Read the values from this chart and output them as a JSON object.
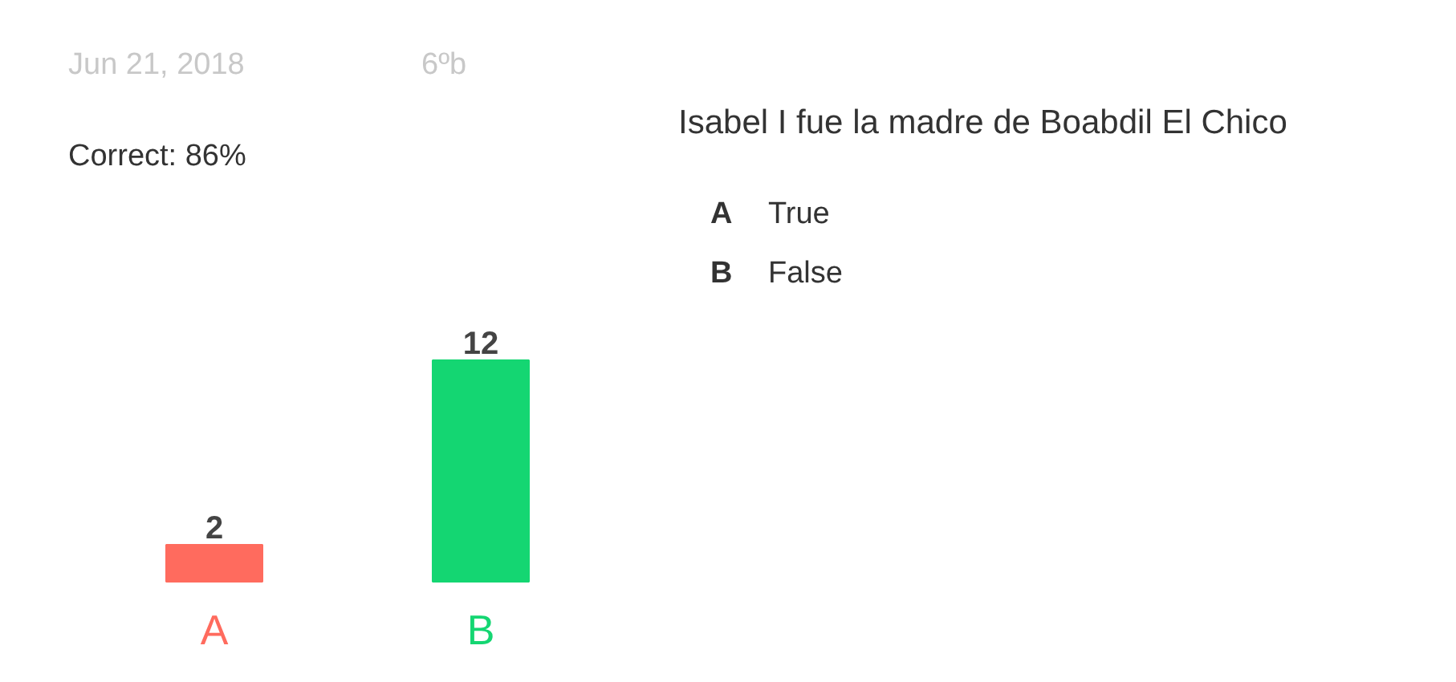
{
  "chart_data": {
    "type": "bar",
    "title": "Isabel I fue la madre de Boabdil El Chico",
    "categories": [
      "A",
      "B"
    ],
    "values": [
      2,
      12
    ],
    "colors": [
      "#ff6b5e",
      "#14d672"
    ],
    "data_labels": true,
    "annotations": [
      "Jun 21, 2018",
      "6ºb",
      "Correct: 86%",
      "A",
      "True",
      "B",
      "False"
    ]
  }
}
